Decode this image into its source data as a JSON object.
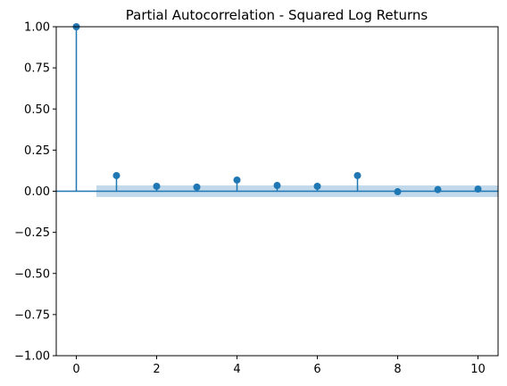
{
  "chart_data": {
    "type": "stem",
    "title": "Partial Autocorrelation - Squared Log Returns",
    "xlabel": "",
    "ylabel": "",
    "xlim": [
      -0.5,
      10.5
    ],
    "ylim": [
      -1.0,
      1.0
    ],
    "x_ticks": [
      0,
      2,
      4,
      6,
      8,
      10
    ],
    "x_tick_labels": [
      "0",
      "2",
      "4",
      "6",
      "8",
      "10"
    ],
    "y_ticks": [
      -1.0,
      -0.75,
      -0.5,
      -0.25,
      0.0,
      0.25,
      0.5,
      0.75,
      1.0
    ],
    "y_tick_labels": [
      "−1.00",
      "−0.75",
      "−0.50",
      "−0.25",
      "0.00",
      "0.25",
      "0.50",
      "0.75",
      "1.00"
    ],
    "lags": [
      0,
      1,
      2,
      3,
      4,
      5,
      6,
      7,
      8,
      9,
      10
    ],
    "values": [
      1.0,
      0.095,
      0.03,
      0.025,
      0.068,
      0.035,
      0.03,
      0.095,
      -0.003,
      0.01,
      0.013
    ],
    "confidence_band": {
      "x": [
        0.5,
        10.5
      ],
      "lower": -0.035,
      "upper": 0.035
    },
    "grid": false,
    "colors": {
      "series": "#1f77b4",
      "band": "#1f77b4"
    }
  }
}
